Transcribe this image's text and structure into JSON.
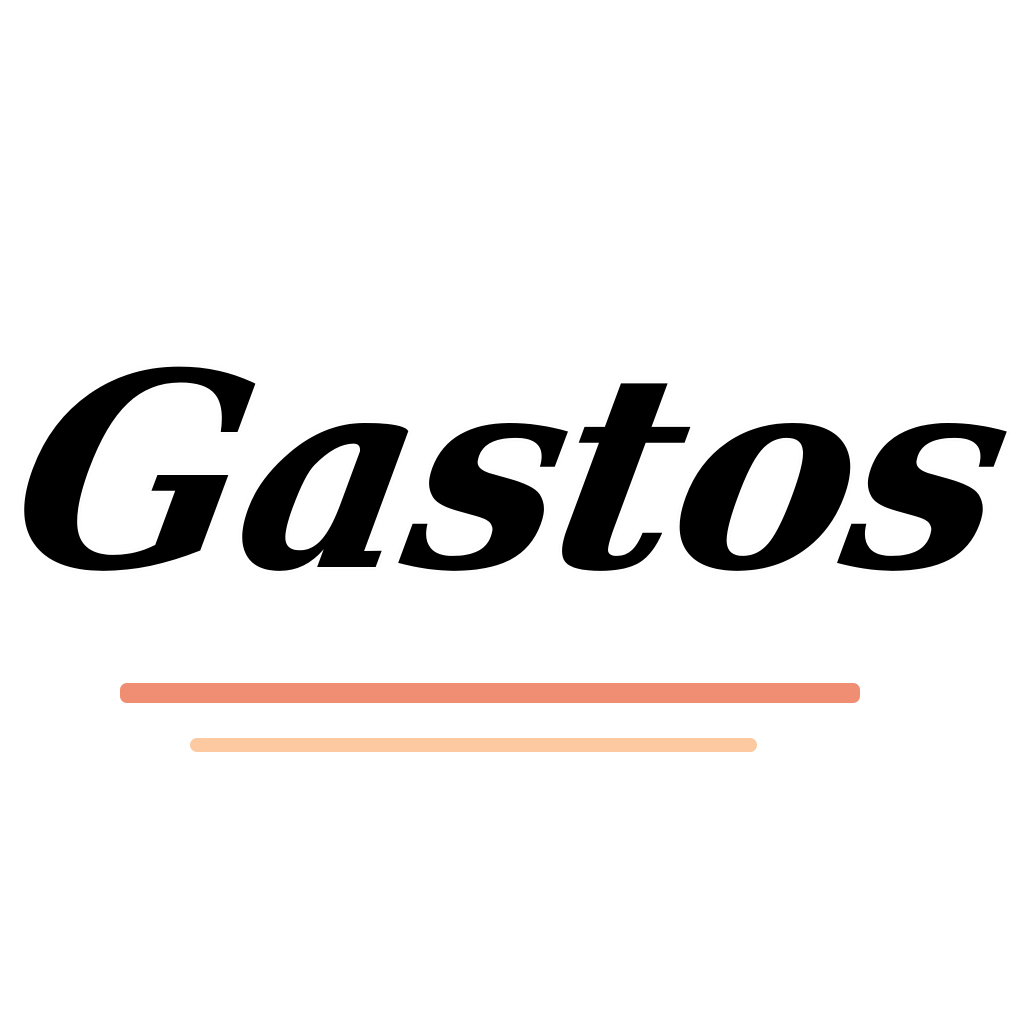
{
  "title": "Gastos",
  "colors": {
    "background": "#ffffff",
    "text": "#000000",
    "line_top": "#ef8e72",
    "line_bottom": "#fcc9a0"
  }
}
